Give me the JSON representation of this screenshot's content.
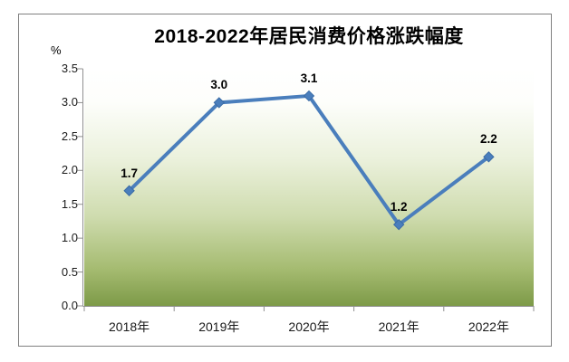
{
  "page": {
    "background_color": "#FFFFFF",
    "frame_border_color": "#808080"
  },
  "chart_data": {
    "type": "line",
    "title": "2018-2022年居民消费价格涨跌幅度",
    "unit_label": "%",
    "categories": [
      "2018年",
      "2019年",
      "2020年",
      "2021年",
      "2022年"
    ],
    "values": [
      1.7,
      3.0,
      3.1,
      1.2,
      2.2
    ],
    "data_labels": [
      "1.7",
      "3.0",
      "3.1",
      "1.2",
      "2.2"
    ],
    "xlabel": "",
    "ylabel": "%",
    "ylim": [
      0,
      3.5
    ],
    "ytick_step": 0.5,
    "ytick_labels": [
      "0.0",
      "0.5",
      "1.0",
      "1.5",
      "2.0",
      "2.5",
      "3.0",
      "3.5"
    ],
    "grid": false,
    "legend": "none",
    "line_color": "#4A7EBC",
    "marker_style": "diamond",
    "marker_fill": "#4A7EBC",
    "marker_stroke": "#3A6BA5",
    "axis_color": "#909090",
    "text_color": "#000000",
    "plot_background_gradient": [
      {
        "offset": "0%",
        "color": "#FFFFFF"
      },
      {
        "offset": "14%",
        "color": "#FDFEFB"
      },
      {
        "offset": "38%",
        "color": "#EBF1DC"
      },
      {
        "offset": "62%",
        "color": "#CFDCAF"
      },
      {
        "offset": "84%",
        "color": "#A6BC72"
      },
      {
        "offset": "100%",
        "color": "#7D9A48"
      }
    ]
  }
}
